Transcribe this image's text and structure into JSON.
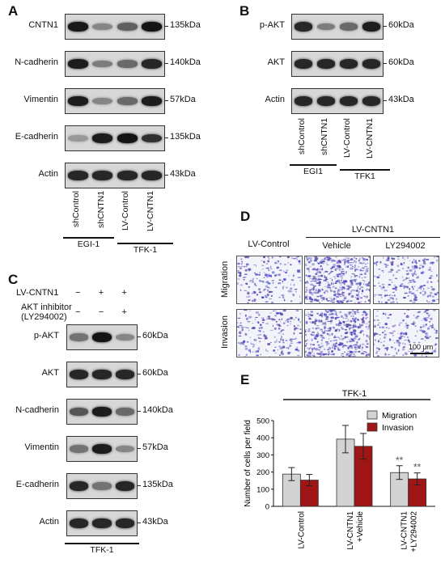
{
  "panels": {
    "A": {
      "letter": "A",
      "rows": [
        {
          "label": "CNTN1",
          "kda": "135kDa",
          "intens": [
            0.92,
            0.35,
            0.55,
            0.95
          ]
        },
        {
          "label": "N-cadherin",
          "kda": "140kDa",
          "intens": [
            0.9,
            0.4,
            0.5,
            0.85
          ]
        },
        {
          "label": "Vimentin",
          "kda": "57kDa",
          "intens": [
            0.9,
            0.35,
            0.5,
            0.9
          ]
        },
        {
          "label": "E-cadherin",
          "kda": "135kDa",
          "intens": [
            0.25,
            0.9,
            0.95,
            0.8
          ]
        },
        {
          "label": "Actin",
          "kda": "43kDa",
          "intens": [
            0.85,
            0.85,
            0.85,
            0.85
          ]
        }
      ],
      "lanes": [
        "shControl",
        "shCNTN1",
        "LV-Control",
        "LV-CNTN1"
      ],
      "groups": [
        "EGI-1",
        "TFK-1"
      ]
    },
    "B": {
      "letter": "B",
      "rows": [
        {
          "label": "p-AKT",
          "kda": "60kDa",
          "intens": [
            0.85,
            0.4,
            0.5,
            0.9
          ]
        },
        {
          "label": "AKT",
          "kda": "60kDa",
          "intens": [
            0.85,
            0.85,
            0.85,
            0.85
          ]
        },
        {
          "label": "Actin",
          "kda": "43kDa",
          "intens": [
            0.85,
            0.85,
            0.85,
            0.85
          ]
        }
      ],
      "lanes": [
        "shControl",
        "shCNTN1",
        "LV-Control",
        "LV-CNTN1"
      ],
      "groups": [
        "EGI1",
        "TFK1"
      ]
    },
    "C": {
      "letter": "C",
      "treat1_label": "LV-CNTN1",
      "treat1_signs": [
        "−",
        "+",
        "+"
      ],
      "treat2_label": "AKT inhibitor",
      "treat2_sublabel": "(LY294002)",
      "treat2_signs": [
        "−",
        "−",
        "+"
      ],
      "rows": [
        {
          "label": "p-AKT",
          "kda": "60kDa",
          "intens": [
            0.45,
            0.95,
            0.35
          ]
        },
        {
          "label": "AKT",
          "kda": "60kDa",
          "intens": [
            0.85,
            0.85,
            0.85
          ]
        },
        {
          "label": "N-cadherin",
          "kda": "140kDa",
          "intens": [
            0.6,
            0.9,
            0.5
          ]
        },
        {
          "label": "Vimentin",
          "kda": "57kDa",
          "intens": [
            0.45,
            0.9,
            0.35
          ]
        },
        {
          "label": "E-cadherin",
          "kda": "135kDa",
          "intens": [
            0.85,
            0.45,
            0.85
          ]
        },
        {
          "label": "Actin",
          "kda": "43kDa",
          "intens": [
            0.85,
            0.85,
            0.85
          ]
        }
      ],
      "group": "TFK-1"
    },
    "D": {
      "letter": "D",
      "top_group": "LV-CNTN1",
      "columns": [
        "LV-Control",
        "Vehicle",
        "LY294002"
      ],
      "rows": [
        "Migration",
        "Invasion"
      ],
      "densities": [
        [
          0.3,
          0.85,
          0.35
        ],
        [
          0.3,
          0.8,
          0.3
        ]
      ],
      "scale_bar": "100 μm"
    },
    "E": {
      "letter": "E",
      "group_label": "TFK-1"
    }
  },
  "chart_data": {
    "type": "bar",
    "title": "TFK-1",
    "ylabel": "Number of cells per field",
    "xlabel": "",
    "ylim": [
      0,
      500
    ],
    "yticks": [
      "0",
      "100",
      "200",
      "300",
      "400",
      "500"
    ],
    "categories": [
      [
        "LV-Control"
      ],
      [
        "LV-CNTN1",
        "+Vehicle"
      ],
      [
        "LV-CNTN1",
        "+LY294002"
      ]
    ],
    "series": [
      {
        "name": "Migration",
        "color": "#d3d3d3",
        "values": [
          188,
          392,
          197
        ],
        "errors": [
          38,
          80,
          40
        ],
        "annotations": [
          "",
          "",
          "**"
        ]
      },
      {
        "name": "Invasion",
        "color": "#a01515",
        "values": [
          153,
          350,
          160
        ],
        "errors": [
          33,
          75,
          35
        ],
        "annotations": [
          "",
          "",
          "**"
        ]
      }
    ],
    "legend_position": "top-right"
  }
}
